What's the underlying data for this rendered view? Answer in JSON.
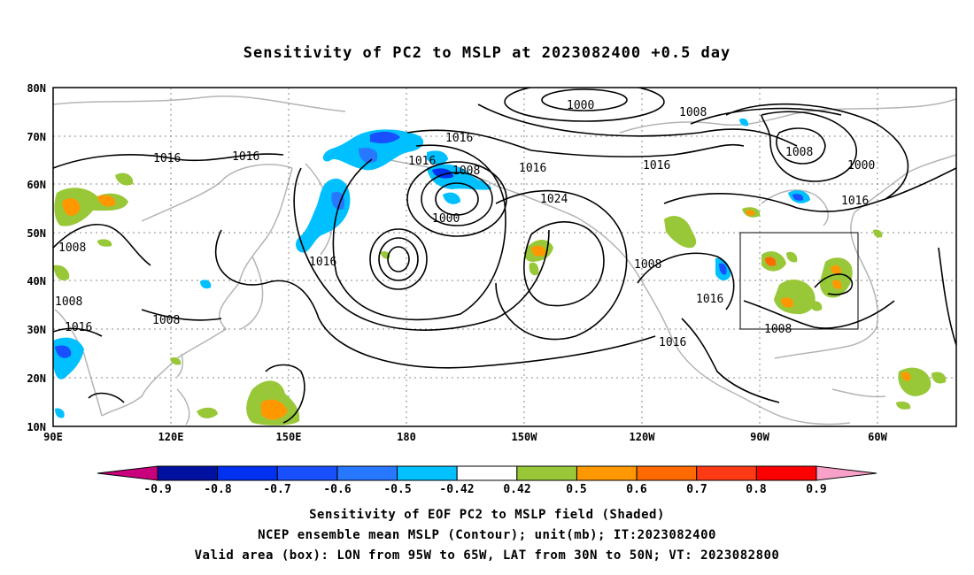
{
  "title": "Sensitivity of PC2 to MSLP at 2023082400 +0.5 day",
  "map": {
    "lat_labels": [
      "80N",
      "70N",
      "60N",
      "50N",
      "40N",
      "30N",
      "20N",
      "10N"
    ],
    "lon_labels": [
      "90E",
      "120E",
      "150E",
      "180",
      "150W",
      "120W",
      "90W",
      "60W"
    ],
    "lon_range": [
      90,
      320
    ],
    "lat_range": [
      10,
      80
    ],
    "contour_labels": [
      "1000",
      "1008",
      "1016",
      "1016",
      "1016",
      "1016",
      "1008",
      "1016",
      "1000",
      "1008",
      "1024",
      "1016",
      "1016",
      "1000",
      "1008",
      "1016",
      "1008",
      "1008",
      "1008",
      "1016",
      "1016",
      "1008",
      "1016"
    ],
    "valid_box": {
      "lon_west": "95W",
      "lon_east": "65W",
      "lat_south": "30N",
      "lat_north": "50N"
    }
  },
  "colorbar": {
    "labels": [
      "-0.9",
      "-0.8",
      "-0.7",
      "-0.6",
      "-0.5",
      "-0.42",
      "0.42",
      "0.5",
      "0.6",
      "0.7",
      "0.8",
      "0.9"
    ],
    "colors": [
      "#c8007c",
      "#0010a0",
      "#0030f0",
      "#1850ff",
      "#2878ff",
      "#00c0ff",
      "#ffffff",
      "#98c838",
      "#ff9800",
      "#ff6a00",
      "#ff3a14",
      "#ff0000",
      "#f8a0c8"
    ]
  },
  "captions": [
    "Sensitivity of EOF PC2 to MSLP field (Shaded)",
    "NCEP ensemble mean MSLP (Contour); unit(mb); IT:2023082400",
    "Valid area (box): LON from 95W to 65W, LAT from 30N to 50N; VT: 2023082800"
  ]
}
